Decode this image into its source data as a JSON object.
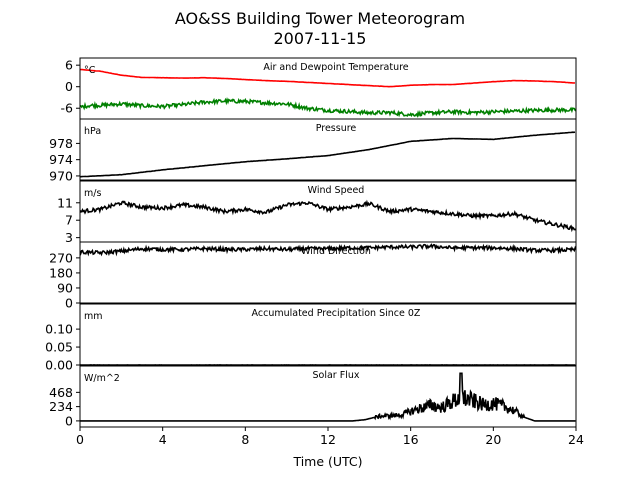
{
  "figure": {
    "title_line1": "AO&SS Building Tower Meteorogram",
    "title_line2": "2007-11-15",
    "xlabel": "Time (UTC)",
    "x_ticks": [
      0,
      4,
      8,
      12,
      16,
      20,
      24
    ],
    "x_range": [
      0,
      24
    ]
  },
  "chart_data": [
    {
      "type": "line",
      "title": "Air and Dewpoint Temperature",
      "unit": "°C",
      "ylim": [
        -9,
        8
      ],
      "y_ticks": [
        6,
        0,
        -6
      ],
      "series": [
        {
          "color": "#ff0000",
          "style": "smooth",
          "points": [
            [
              0,
              4.8
            ],
            [
              1,
              4.3
            ],
            [
              2,
              3.2
            ],
            [
              3,
              2.6
            ],
            [
              4,
              2.5
            ],
            [
              5,
              2.4
            ],
            [
              6,
              2.5
            ],
            [
              7,
              2.3
            ],
            [
              8,
              2.0
            ],
            [
              9,
              1.7
            ],
            [
              10,
              1.5
            ],
            [
              11,
              1.2
            ],
            [
              12,
              0.9
            ],
            [
              13,
              0.6
            ],
            [
              14,
              0.3
            ],
            [
              15,
              0.0
            ],
            [
              16,
              0.4
            ],
            [
              17,
              0.6
            ],
            [
              18,
              0.6
            ],
            [
              19,
              1.0
            ],
            [
              20,
              1.4
            ],
            [
              21,
              1.7
            ],
            [
              22,
              1.6
            ],
            [
              23,
              1.4
            ],
            [
              24,
              1.0
            ]
          ]
        },
        {
          "color": "#008000",
          "style": "noisy",
          "points": [
            [
              0,
              -5.7
            ],
            [
              0.5,
              -5.2
            ],
            [
              1,
              -5.2
            ],
            [
              2,
              -4.8
            ],
            [
              3,
              -5.3
            ],
            [
              4,
              -5.5
            ],
            [
              5,
              -5.0
            ],
            [
              6,
              -4.3
            ],
            [
              7,
              -4.0
            ],
            [
              8,
              -4.1
            ],
            [
              9,
              -4.5
            ],
            [
              10,
              -4.8
            ],
            [
              11,
              -6.0
            ],
            [
              12,
              -6.6
            ],
            [
              13,
              -6.9
            ],
            [
              14,
              -7.3
            ],
            [
              15,
              -7.2
            ],
            [
              16,
              -7.8
            ],
            [
              17,
              -7.3
            ],
            [
              18,
              -7.0
            ],
            [
              19,
              -7.2
            ],
            [
              20,
              -7.0
            ],
            [
              21,
              -6.8
            ],
            [
              22,
              -6.6
            ],
            [
              23,
              -6.5
            ],
            [
              24,
              -6.5
            ]
          ]
        }
      ]
    },
    {
      "type": "line",
      "title": "Pressure",
      "unit": "hPa",
      "ylim": [
        969,
        984
      ],
      "y_ticks": [
        978,
        974,
        970
      ],
      "series": [
        {
          "color": "#000000",
          "style": "smooth",
          "points": [
            [
              0,
              969.8
            ],
            [
              2,
              970.3
            ],
            [
              4,
              971.5
            ],
            [
              6,
              972.5
            ],
            [
              8,
              973.5
            ],
            [
              10,
              974.2
            ],
            [
              12,
              975.0
            ],
            [
              14,
              976.5
            ],
            [
              16,
              978.5
            ],
            [
              18,
              979.2
            ],
            [
              20,
              979.0
            ],
            [
              22,
              980.0
            ],
            [
              24,
              980.8
            ]
          ]
        }
      ]
    },
    {
      "type": "line",
      "title": "Wind Speed",
      "unit": "m/s",
      "ylim": [
        2,
        16
      ],
      "y_ticks": [
        11,
        7,
        3
      ],
      "series": [
        {
          "color": "#000000",
          "style": "noisy",
          "points": [
            [
              0,
              9.0
            ],
            [
              1,
              9.5
            ],
            [
              2,
              11.0
            ],
            [
              3,
              10.0
            ],
            [
              4,
              9.8
            ],
            [
              5,
              10.5
            ],
            [
              6,
              10.0
            ],
            [
              7,
              9.0
            ],
            [
              8,
              9.5
            ],
            [
              9,
              8.8
            ],
            [
              10,
              10.5
            ],
            [
              11,
              11.0
            ],
            [
              12,
              9.5
            ],
            [
              13,
              10.0
            ],
            [
              14,
              10.8
            ],
            [
              15,
              9.0
            ],
            [
              16,
              9.5
            ],
            [
              17,
              9.0
            ],
            [
              18,
              8.5
            ],
            [
              19,
              8.0
            ],
            [
              20,
              8.0
            ],
            [
              21,
              8.5
            ],
            [
              22,
              7.0
            ],
            [
              23,
              6.0
            ],
            [
              24,
              5.0
            ]
          ]
        }
      ]
    },
    {
      "type": "line",
      "title": "Wind Direction",
      "unit": "",
      "ylim": [
        0,
        365
      ],
      "y_ticks": [
        270,
        180,
        90,
        0
      ],
      "series": [
        {
          "color": "#000000",
          "style": "noisy",
          "points": [
            [
              0,
              305
            ],
            [
              1,
              300
            ],
            [
              2,
              310
            ],
            [
              3,
              325
            ],
            [
              4,
              320
            ],
            [
              5,
              320
            ],
            [
              6,
              325
            ],
            [
              7,
              320
            ],
            [
              8,
              320
            ],
            [
              9,
              325
            ],
            [
              10,
              320
            ],
            [
              11,
              325
            ],
            [
              12,
              325
            ],
            [
              13,
              330
            ],
            [
              14,
              330
            ],
            [
              15,
              335
            ],
            [
              16,
              335
            ],
            [
              17,
              340
            ],
            [
              18,
              330
            ],
            [
              19,
              330
            ],
            [
              20,
              330
            ],
            [
              21,
              325
            ],
            [
              22,
              315
            ],
            [
              23,
              315
            ],
            [
              24,
              320
            ]
          ]
        }
      ]
    },
    {
      "type": "line",
      "title": "Accumulated Precipitation Since 0Z",
      "unit": "mm",
      "ylim": [
        0,
        0.17
      ],
      "y_ticks": [
        0.1,
        0.05,
        0.0
      ],
      "series": [
        {
          "color": "#000000",
          "style": "smooth",
          "points": [
            [
              0,
              0
            ],
            [
              24,
              0
            ]
          ]
        }
      ]
    },
    {
      "type": "line",
      "title": "Solar Flux",
      "unit": "W/m^2",
      "ylim": [
        -100,
        900
      ],
      "y_ticks": [
        468,
        234,
        0
      ],
      "series": [
        {
          "color": "#000000",
          "style": "spiky",
          "points": [
            [
              0,
              0
            ],
            [
              13.2,
              0
            ],
            [
              13.8,
              20
            ],
            [
              14.5,
              80
            ],
            [
              15.5,
              100
            ],
            [
              16.2,
              190
            ],
            [
              17,
              270
            ],
            [
              17.5,
              230
            ],
            [
              18,
              330
            ],
            [
              18.5,
              400
            ],
            [
              19,
              350
            ],
            [
              19.5,
              280
            ],
            [
              20,
              300
            ],
            [
              20.5,
              250
            ],
            [
              21,
              180
            ],
            [
              21.5,
              60
            ],
            [
              22,
              0
            ],
            [
              24,
              0
            ]
          ]
        }
      ]
    }
  ]
}
